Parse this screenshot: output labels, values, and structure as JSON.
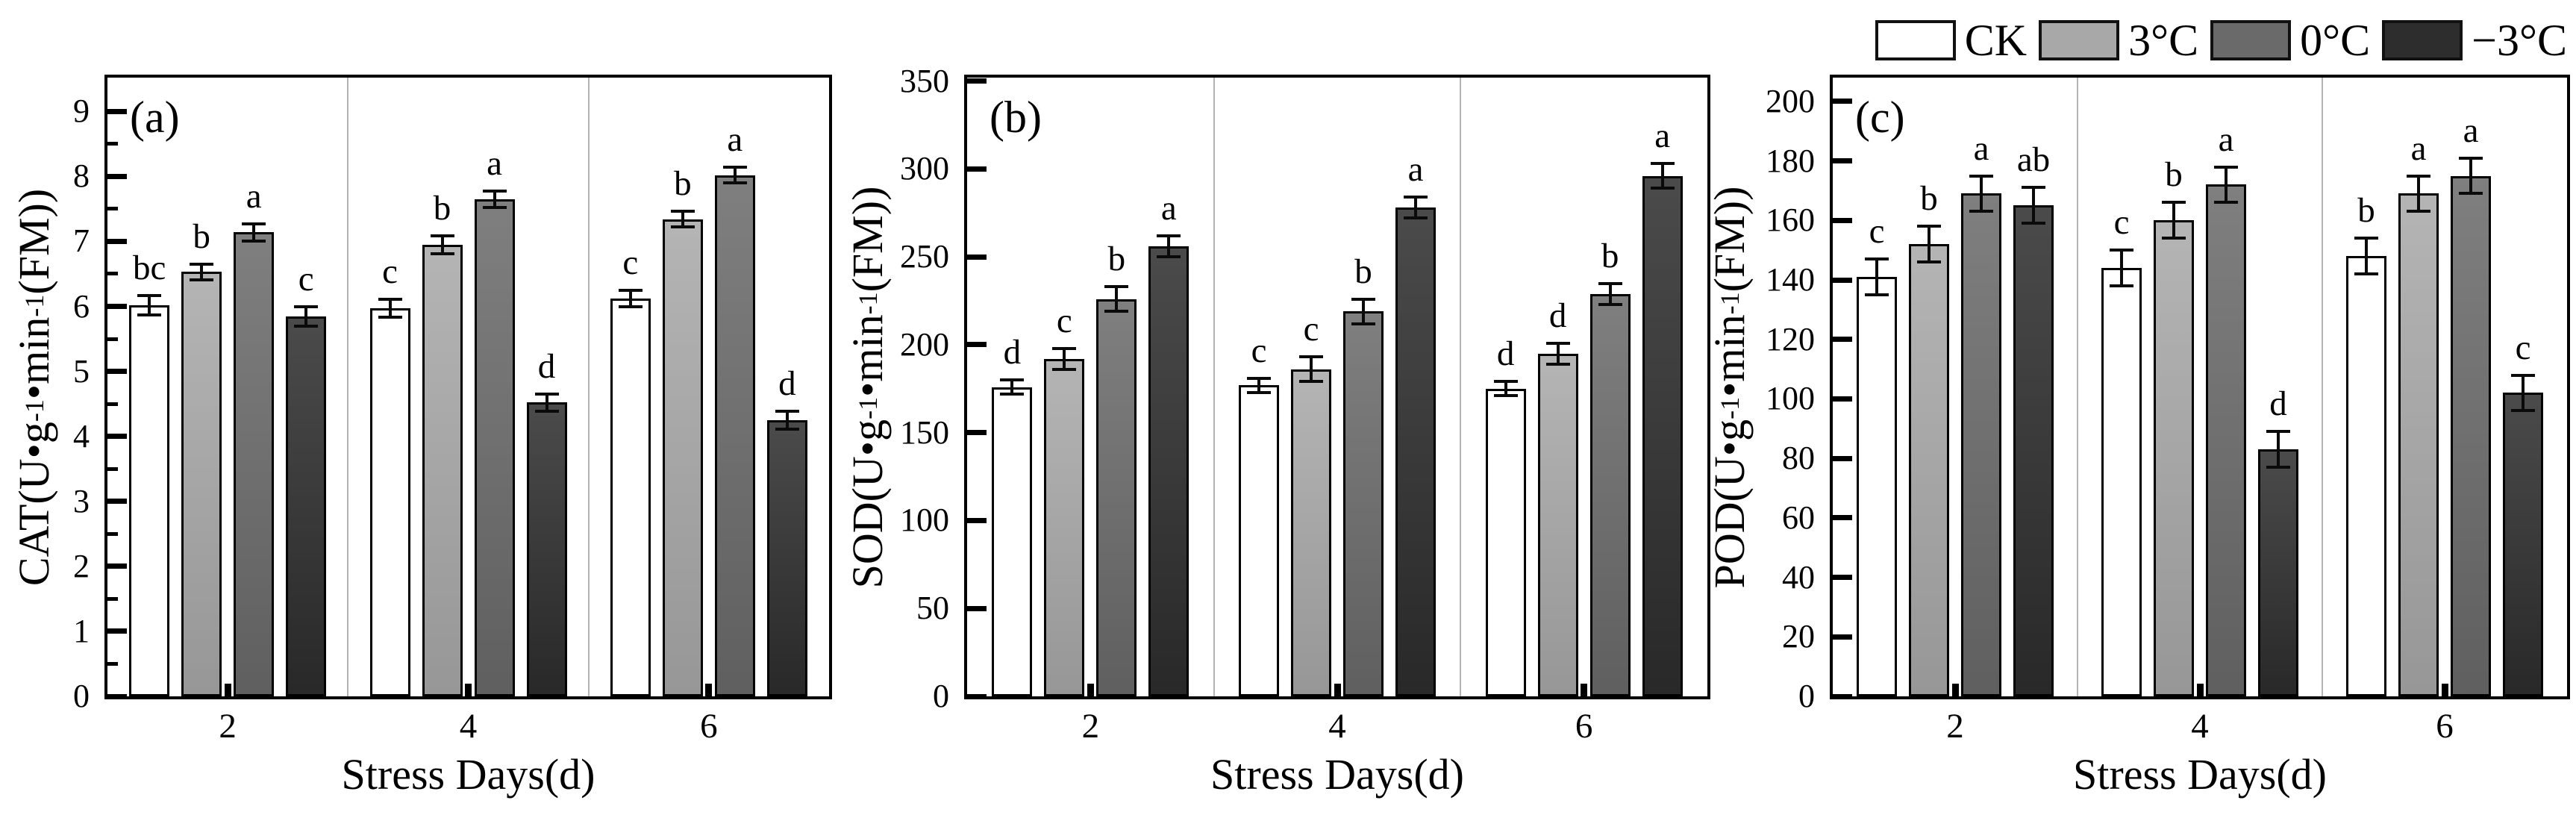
{
  "legend": {
    "items": [
      {
        "label": "CK",
        "color": "#ffffff"
      },
      {
        "label": "3°C",
        "color": "#a8a8a8"
      },
      {
        "label": "0°C",
        "color": "#6a6a6a"
      },
      {
        "label": "−3°C",
        "color": "#2d2d2d"
      }
    ]
  },
  "chart_data": [
    {
      "type": "bar",
      "panel_tag": "(a)",
      "ylabel_text": "CAT(U•g-1•min-1(FM))",
      "ylabel_parts": [
        {
          "text": "CAT(U•g"
        },
        {
          "sup": "-1"
        },
        {
          "text": "•min"
        },
        {
          "sup": "-1"
        },
        {
          "text": "(FM))"
        }
      ],
      "xlabel": "Stress Days(d)",
      "categories": [
        "2",
        "4",
        "6"
      ],
      "ylim": [
        0,
        9.52
      ],
      "yticks": [
        0,
        1,
        2,
        3,
        4,
        5,
        6,
        7,
        8,
        9
      ],
      "yminor_step": 0.5,
      "grid": "vertical-group-separators",
      "series": [
        {
          "name": "CK",
          "color": "#ffffff",
          "values": [
            6.02,
            5.97,
            6.12
          ],
          "errors": [
            0.15,
            0.14,
            0.13
          ],
          "letters": [
            "bc",
            "c",
            "c"
          ]
        },
        {
          "name": "3°C",
          "color": "#a8a8a8",
          "values": [
            6.53,
            6.95,
            7.34
          ],
          "errors": [
            0.12,
            0.14,
            0.12
          ],
          "letters": [
            "b",
            "b",
            "b"
          ]
        },
        {
          "name": "0°C",
          "color": "#6a6a6a",
          "values": [
            7.14,
            7.65,
            8.02
          ],
          "errors": [
            0.13,
            0.13,
            0.12
          ],
          "letters": [
            "a",
            "a",
            "a"
          ]
        },
        {
          "name": "−3°C",
          "color": "#2d2d2d",
          "values": [
            5.85,
            4.52,
            4.25
          ],
          "errors": [
            0.15,
            0.13,
            0.14
          ],
          "letters": [
            "c",
            "d",
            "d"
          ]
        }
      ]
    },
    {
      "type": "bar",
      "panel_tag": "(b)",
      "ylabel_text": "SOD(U•g-1•min-1(FM))",
      "ylabel_parts": [
        {
          "text": "SOD(U•g"
        },
        {
          "sup": "-1"
        },
        {
          "text": "•min"
        },
        {
          "sup": "-1"
        },
        {
          "text": "(FM))"
        }
      ],
      "xlabel": "Stress Days(d)",
      "categories": [
        "2",
        "4",
        "6"
      ],
      "ylim": [
        0,
        352
      ],
      "yticks": [
        0,
        50,
        100,
        150,
        200,
        250,
        300,
        350
      ],
      "yminor_step": null,
      "grid": "vertical-group-separators",
      "series": [
        {
          "name": "CK",
          "color": "#ffffff",
          "values": [
            176,
            177,
            175
          ],
          "errors": [
            4,
            4,
            4
          ],
          "letters": [
            "d",
            "c",
            "d"
          ]
        },
        {
          "name": "3°C",
          "color": "#a8a8a8",
          "values": [
            192,
            186,
            195
          ],
          "errors": [
            6,
            7,
            6
          ],
          "letters": [
            "c",
            "c",
            "d"
          ]
        },
        {
          "name": "0°C",
          "color": "#6a6a6a",
          "values": [
            226,
            219,
            229
          ],
          "errors": [
            7,
            7,
            6
          ],
          "letters": [
            "b",
            "b",
            "b"
          ]
        },
        {
          "name": "−3°C",
          "color": "#2d2d2d",
          "values": [
            256,
            278,
            296
          ],
          "errors": [
            6,
            6,
            7
          ],
          "letters": [
            "a",
            "a",
            "a"
          ]
        }
      ]
    },
    {
      "type": "bar",
      "panel_tag": "(c)",
      "ylabel_text": "POD(U•g-1•min-1(FM))",
      "ylabel_parts": [
        {
          "text": "POD(U•g"
        },
        {
          "sup": "-1"
        },
        {
          "text": "•min"
        },
        {
          "sup": "-1"
        },
        {
          "text": "(FM))"
        }
      ],
      "xlabel": "Stress Days(d)",
      "categories": [
        "2",
        "4",
        "6"
      ],
      "ylim": [
        0,
        208
      ],
      "yticks": [
        0,
        20,
        40,
        60,
        80,
        100,
        120,
        140,
        160,
        180,
        200
      ],
      "yminor_step": null,
      "grid": "vertical-group-separators",
      "series": [
        {
          "name": "CK",
          "color": "#ffffff",
          "values": [
            141,
            144,
            148
          ],
          "errors": [
            6,
            6,
            6
          ],
          "letters": [
            "c",
            "c",
            "b"
          ]
        },
        {
          "name": "3°C",
          "color": "#a8a8a8",
          "values": [
            152,
            160,
            169
          ],
          "errors": [
            6,
            6,
            6
          ],
          "letters": [
            "b",
            "b",
            "a"
          ]
        },
        {
          "name": "0°C",
          "color": "#6a6a6a",
          "values": [
            169,
            172,
            175
          ],
          "errors": [
            6,
            6,
            6
          ],
          "letters": [
            "a",
            "a",
            "a"
          ]
        },
        {
          "name": "−3°C",
          "color": "#2d2d2d",
          "values": [
            165,
            83,
            102
          ],
          "errors": [
            6,
            6,
            6
          ],
          "letters": [
            "ab",
            "d",
            "c"
          ]
        }
      ]
    }
  ]
}
